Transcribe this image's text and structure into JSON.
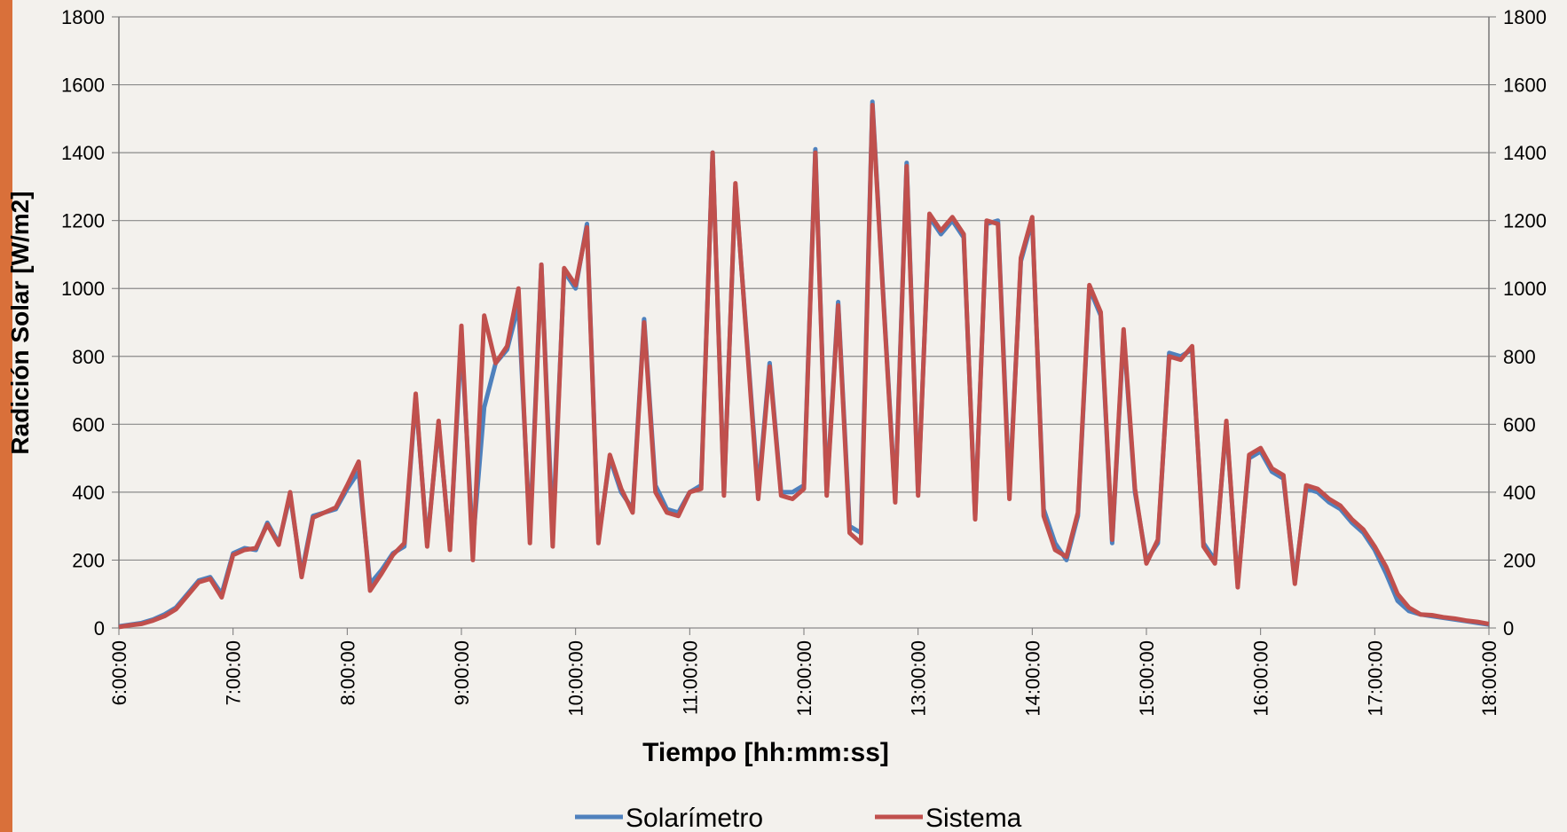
{
  "chart_data": {
    "type": "line",
    "x_label": "Tiempo [hh:mm:ss]",
    "y_label": "Radición Solar [W/m2]",
    "xlim": [
      6,
      18
    ],
    "xticks": [
      {
        "value": 6,
        "label": "6:00:00"
      },
      {
        "value": 7,
        "label": "7:00:00"
      },
      {
        "value": 8,
        "label": "8:00:00"
      },
      {
        "value": 9,
        "label": "9:00:00"
      },
      {
        "value": 10,
        "label": "10:00:00"
      },
      {
        "value": 11,
        "label": "11:00:00"
      },
      {
        "value": 12,
        "label": "12:00:00"
      },
      {
        "value": 13,
        "label": "13:00:00"
      },
      {
        "value": 14,
        "label": "14:00:00"
      },
      {
        "value": 15,
        "label": "15:00:00"
      },
      {
        "value": 16,
        "label": "16:00:00"
      },
      {
        "value": 17,
        "label": "17:00:00"
      },
      {
        "value": 18,
        "label": "18:00:00"
      }
    ],
    "ylim": [
      0,
      1800
    ],
    "yticks": [
      0,
      200,
      400,
      600,
      800,
      1000,
      1200,
      1400,
      1600,
      1800
    ],
    "y2lim": [
      0,
      1800
    ],
    "y2ticks": [
      0,
      200,
      400,
      600,
      800,
      1000,
      1200,
      1400,
      1600,
      1800
    ],
    "grid": true,
    "legend": "bottom",
    "x": [
      6.0,
      6.1,
      6.2,
      6.3,
      6.4,
      6.5,
      6.6,
      6.7,
      6.8,
      6.9,
      7.0,
      7.1,
      7.2,
      7.3,
      7.4,
      7.5,
      7.6,
      7.7,
      7.8,
      7.9,
      8.0,
      8.1,
      8.2,
      8.3,
      8.4,
      8.5,
      8.6,
      8.7,
      8.8,
      8.9,
      9.0,
      9.1,
      9.2,
      9.3,
      9.4,
      9.5,
      9.6,
      9.7,
      9.8,
      9.9,
      10.0,
      10.1,
      10.2,
      10.3,
      10.4,
      10.5,
      10.6,
      10.7,
      10.8,
      10.9,
      11.0,
      11.1,
      11.2,
      11.3,
      11.4,
      11.5,
      11.6,
      11.7,
      11.8,
      11.9,
      12.0,
      12.1,
      12.2,
      12.3,
      12.4,
      12.5,
      12.6,
      12.7,
      12.8,
      12.9,
      13.0,
      13.1,
      13.2,
      13.3,
      13.4,
      13.5,
      13.6,
      13.7,
      13.8,
      13.9,
      14.0,
      14.1,
      14.2,
      14.3,
      14.4,
      14.5,
      14.6,
      14.7,
      14.8,
      14.9,
      15.0,
      15.1,
      15.2,
      15.3,
      15.4,
      15.5,
      15.6,
      15.7,
      15.8,
      15.9,
      16.0,
      16.1,
      16.2,
      16.3,
      16.4,
      16.5,
      16.6,
      16.7,
      16.8,
      16.9,
      17.0,
      17.1,
      17.2,
      17.3,
      17.4,
      17.5,
      17.6,
      17.7,
      17.8,
      17.9,
      18.0
    ],
    "series": [
      {
        "name": "Solarímetro",
        "color": "#4f81bd",
        "values": [
          5,
          10,
          15,
          25,
          40,
          60,
          100,
          140,
          150,
          100,
          220,
          235,
          230,
          310,
          250,
          390,
          160,
          330,
          340,
          350,
          410,
          460,
          130,
          170,
          220,
          240,
          680,
          250,
          600,
          240,
          850,
          250,
          650,
          780,
          820,
          950,
          280,
          1070,
          280,
          1050,
          1000,
          1190,
          260,
          500,
          400,
          350,
          910,
          420,
          350,
          340,
          400,
          420,
          1400,
          400,
          1300,
          850,
          400,
          780,
          400,
          400,
          420,
          1410,
          400,
          960,
          300,
          280,
          1550,
          950,
          380,
          1370,
          400,
          1210,
          1160,
          1200,
          1150,
          330,
          1190,
          1200,
          400,
          1080,
          1200,
          350,
          250,
          200,
          330,
          1000,
          920,
          250,
          870,
          400,
          200,
          250,
          810,
          800,
          820,
          250,
          200,
          600,
          130,
          500,
          520,
          460,
          440,
          140,
          410,
          400,
          370,
          350,
          310,
          280,
          230,
          160,
          80,
          50,
          40,
          35,
          30,
          25,
          20,
          15,
          10
        ]
      },
      {
        "name": "Sistema",
        "color": "#c0504d",
        "values": [
          3,
          8,
          12,
          22,
          35,
          55,
          95,
          135,
          145,
          90,
          215,
          230,
          235,
          305,
          245,
          400,
          150,
          325,
          340,
          355,
          420,
          490,
          110,
          160,
          215,
          250,
          690,
          240,
          610,
          230,
          890,
          200,
          920,
          780,
          830,
          1000,
          250,
          1070,
          240,
          1060,
          1010,
          1180,
          250,
          510,
          410,
          340,
          900,
          400,
          340,
          330,
          400,
          410,
          1400,
          390,
          1310,
          840,
          380,
          770,
          390,
          380,
          410,
          1400,
          390,
          950,
          280,
          250,
          1540,
          940,
          370,
          1360,
          390,
          1220,
          1170,
          1210,
          1160,
          320,
          1200,
          1190,
          380,
          1090,
          1210,
          330,
          230,
          210,
          340,
          1010,
          930,
          260,
          880,
          410,
          190,
          260,
          800,
          790,
          830,
          240,
          190,
          610,
          120,
          510,
          530,
          470,
          450,
          130,
          420,
          410,
          380,
          360,
          320,
          290,
          240,
          180,
          100,
          60,
          40,
          38,
          32,
          28,
          22,
          18,
          12
        ]
      }
    ]
  }
}
